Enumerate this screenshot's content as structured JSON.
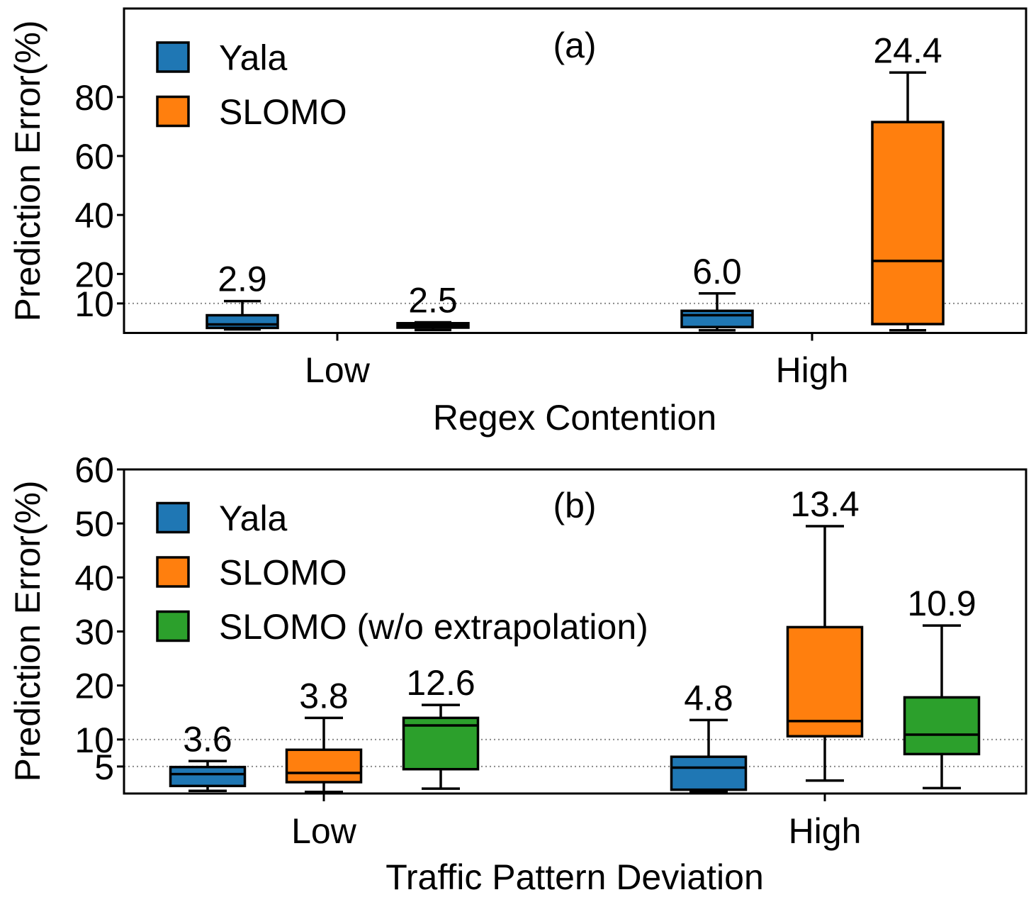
{
  "chart_data": [
    {
      "type": "box",
      "title": "(a)",
      "xlabel": "Regex Contention",
      "ylabel": "Prediction Error(%)",
      "ylim": [
        0,
        110
      ],
      "yticks": [
        10,
        20,
        40,
        60,
        80
      ],
      "hlines": [
        10
      ],
      "legend": "upper-left",
      "categories": [
        "Low",
        "High"
      ],
      "series": [
        {
          "name": "Yala",
          "color": "#1f77b4",
          "boxes": [
            {
              "whisker_low": 1.2,
              "q1": 1.7,
              "median": 2.9,
              "q3": 6.0,
              "whisker_high": 10.8,
              "label": "2.9"
            },
            {
              "whisker_low": 0.9,
              "q1": 2.0,
              "median": 6.0,
              "q3": 7.5,
              "whisker_high": 13.4,
              "label": "6.0"
            }
          ]
        },
        {
          "name": "SLOMO",
          "color": "#ff7f0e",
          "boxes": [
            {
              "whisker_low": 1.0,
              "q1": 1.8,
              "median": 2.5,
              "q3": 3.3,
              "whisker_high": 3.6,
              "label": "2.5"
            },
            {
              "whisker_low": 0.9,
              "q1": 3.0,
              "median": 24.4,
              "q3": 71.5,
              "whisker_high": 88.3,
              "label": "24.4"
            }
          ]
        }
      ]
    },
    {
      "type": "box",
      "title": "(b)",
      "xlabel": "Traffic Pattern Deviation",
      "ylabel": "Prediction Error(%)",
      "ylim": [
        0,
        60
      ],
      "yticks": [
        5,
        10,
        20,
        30,
        40,
        50,
        60
      ],
      "hlines": [
        10,
        5
      ],
      "legend": "upper-left",
      "categories": [
        "Low",
        "High"
      ],
      "series": [
        {
          "name": "Yala",
          "color": "#1f77b4",
          "boxes": [
            {
              "whisker_low": 0.5,
              "q1": 1.4,
              "median": 3.6,
              "q3": 4.9,
              "whisker_high": 6.0,
              "label": "3.6"
            },
            {
              "whisker_low": 0.3,
              "q1": 0.7,
              "median": 4.8,
              "q3": 6.8,
              "whisker_high": 13.6,
              "label": "4.8"
            }
          ]
        },
        {
          "name": "SLOMO",
          "color": "#ff7f0e",
          "boxes": [
            {
              "whisker_low": 0.3,
              "q1": 2.1,
              "median": 3.8,
              "q3": 8.1,
              "whisker_high": 14.0,
              "label": "3.8"
            },
            {
              "whisker_low": 2.4,
              "q1": 10.6,
              "median": 13.4,
              "q3": 30.8,
              "whisker_high": 49.5,
              "label": "13.4"
            }
          ]
        },
        {
          "name": "SLOMO (w/o extrapolation)",
          "color": "#2ca02c",
          "boxes": [
            {
              "whisker_low": 0.9,
              "q1": 4.5,
              "median": 12.6,
              "q3": 14.0,
              "whisker_high": 16.4,
              "label": "12.6"
            },
            {
              "whisker_low": 1.0,
              "q1": 7.3,
              "median": 10.9,
              "q3": 17.8,
              "whisker_high": 31.1,
              "label": "10.9"
            }
          ]
        }
      ]
    }
  ]
}
